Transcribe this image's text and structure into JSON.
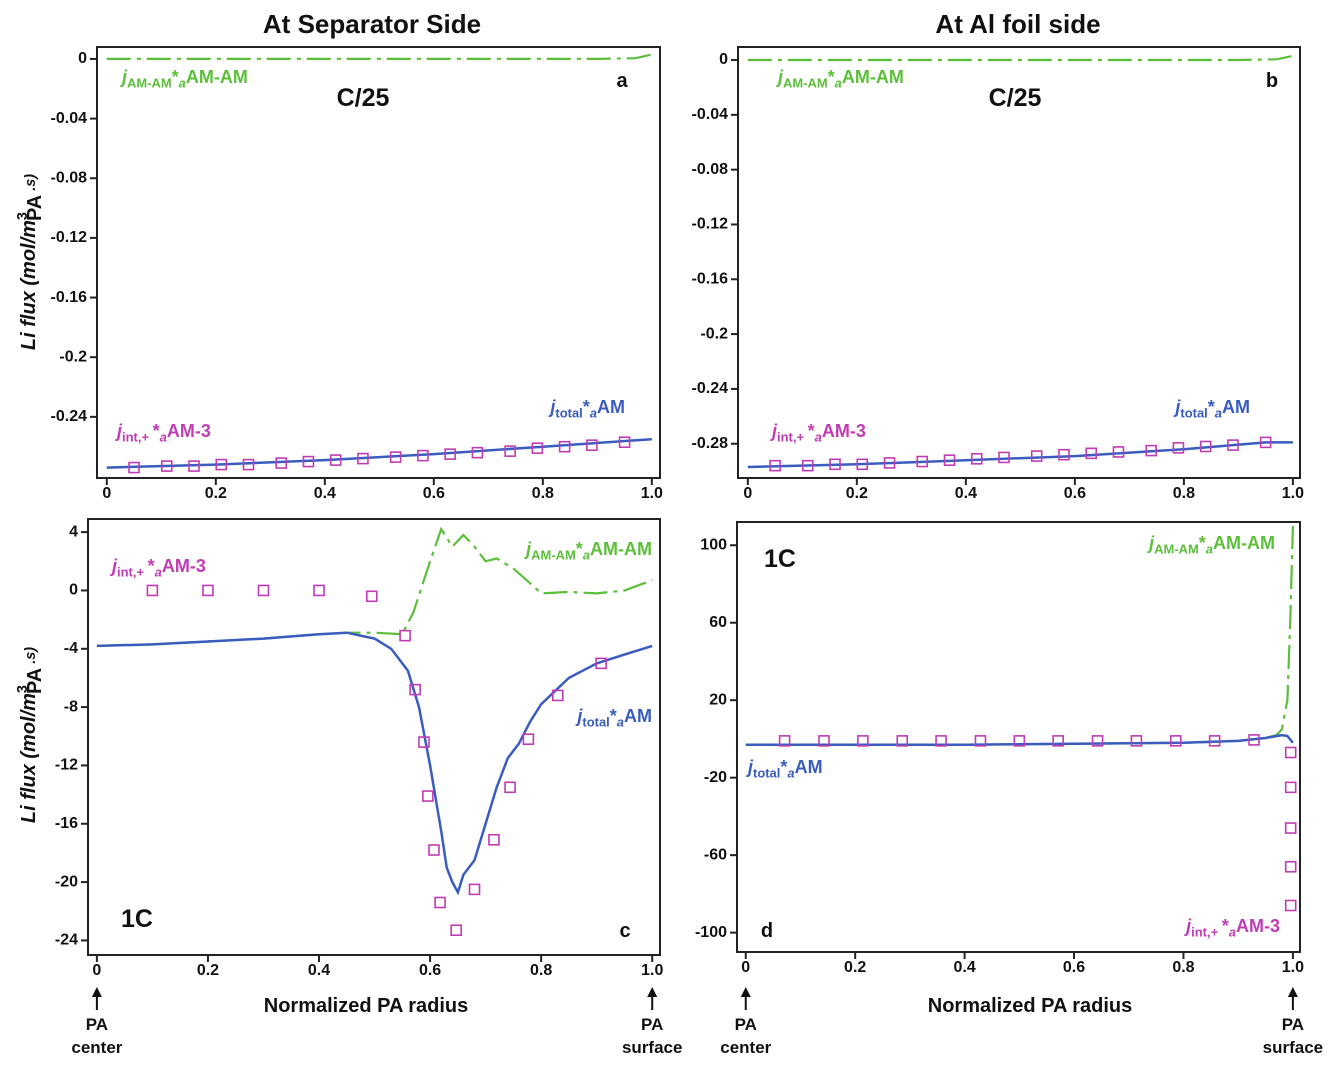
{
  "chart_data": [
    {
      "type": "line",
      "title": "At Separator Side",
      "panel": "a",
      "rate": "C/25",
      "ylabel": [
        "Li flux (mol/m",
        "3",
        "PA",
        " .s)"
      ],
      "xlim": [
        -0.018,
        1.015
      ],
      "ylim": [
        -0.281,
        0.008
      ],
      "xticks": [
        0,
        0.2,
        0.4,
        0.6,
        0.8,
        {
          "value": 1,
          "label": "1.0"
        }
      ],
      "yticks": [
        0,
        -0.04,
        -0.08,
        -0.12,
        -0.16,
        -0.2,
        -0.24
      ],
      "series": [
        {
          "name": [
            "j",
            "AM-AM",
            "*",
            "a",
            "AM-AM"
          ],
          "color": "#5cbf3a",
          "style": "dashdot",
          "x": [
            0,
            0.5,
            0.9,
            0.97,
            1
          ],
          "values": [
            0,
            0,
            0,
            0.0005,
            0.003
          ]
        },
        {
          "name": [
            "j",
            "total",
            "*",
            "a",
            "AM"
          ],
          "color": "#3a5cbf",
          "style": "solid",
          "x": [
            0,
            0.2,
            0.4,
            0.6,
            0.8,
            1
          ],
          "values": [
            -0.274,
            -0.272,
            -0.269,
            -0.265,
            -0.26,
            -0.255
          ]
        },
        {
          "name": [
            "j",
            "int,+ ",
            "*",
            "a",
            "AM-3"
          ],
          "color": "#c03cb4",
          "style": "markers",
          "x": [
            0.05,
            0.11,
            0.16,
            0.21,
            0.26,
            0.32,
            0.37,
            0.42,
            0.47,
            0.53,
            0.58,
            0.63,
            0.68,
            0.74,
            0.79,
            0.84,
            0.89,
            0.95
          ],
          "values": [
            -0.274,
            -0.273,
            -0.273,
            -0.272,
            -0.272,
            -0.271,
            -0.27,
            -0.269,
            -0.268,
            -0.267,
            -0.266,
            -0.265,
            -0.264,
            -0.263,
            -0.261,
            -0.26,
            -0.259,
            -0.257
          ]
        }
      ]
    },
    {
      "type": "line",
      "title": "At Al foil side",
      "panel": "b",
      "rate": "C/25",
      "xlim": [
        -0.018,
        1.013
      ],
      "ylim": [
        -0.305,
        0.0095
      ],
      "xticks": [
        0,
        0.2,
        0.4,
        0.6,
        0.8,
        {
          "value": 1,
          "label": "1.0"
        }
      ],
      "yticks": [
        0,
        -0.04,
        -0.08,
        -0.12,
        -0.16,
        -0.2,
        -0.24,
        -0.28
      ],
      "series": [
        {
          "name": [
            "j",
            "AM-AM",
            "*",
            "a",
            "AM-AM"
          ],
          "color": "#5cbf3a",
          "style": "dashdot",
          "x": [
            0,
            0.5,
            0.9,
            0.97,
            1
          ],
          "values": [
            0,
            0,
            0,
            0.0005,
            0.003
          ]
        },
        {
          "name": [
            "j",
            "total",
            "*",
            "a",
            "AM"
          ],
          "color": "#3a5cbf",
          "style": "solid",
          "x": [
            0,
            0.2,
            0.4,
            0.6,
            0.8,
            0.95,
            1
          ],
          "values": [
            -0.297,
            -0.295,
            -0.292,
            -0.289,
            -0.284,
            -0.279,
            -0.279
          ]
        },
        {
          "name": [
            "j",
            "int,+ ",
            "*",
            "a",
            "AM-3"
          ],
          "color": "#c03cb4",
          "style": "markers",
          "x": [
            0.05,
            0.11,
            0.16,
            0.21,
            0.26,
            0.32,
            0.37,
            0.42,
            0.47,
            0.53,
            0.58,
            0.63,
            0.68,
            0.74,
            0.79,
            0.84,
            0.89,
            0.95
          ],
          "values": [
            -0.296,
            -0.296,
            -0.295,
            -0.295,
            -0.294,
            -0.293,
            -0.292,
            -0.291,
            -0.29,
            -0.289,
            -0.288,
            -0.287,
            -0.286,
            -0.285,
            -0.283,
            -0.282,
            -0.281,
            -0.279
          ]
        }
      ]
    },
    {
      "type": "line",
      "panel": "c",
      "rate": "1C",
      "ylabel": [
        "Li flux (mol/m",
        "3",
        "PA",
        " .s)"
      ],
      "xlabel": "Normalized PA radius",
      "x_annotations": [
        [
          "PA",
          "center"
        ],
        [
          "PA",
          "surface"
        ]
      ],
      "xlim": [
        -0.016,
        1.014
      ],
      "ylim": [
        -25,
        4.9
      ],
      "xticks": [
        0,
        0.2,
        0.4,
        0.6,
        0.8,
        {
          "value": 1,
          "label": "1.0"
        }
      ],
      "yticks": [
        4,
        0,
        -4,
        -8,
        -12,
        -16,
        -20,
        -24
      ],
      "series": [
        {
          "name": [
            "j",
            "AM-AM",
            "*",
            "a",
            "AM-AM"
          ],
          "color": "#5cbf3a",
          "style": "dashdot",
          "x": [
            0,
            0.1,
            0.2,
            0.3,
            0.4,
            0.45,
            0.5,
            0.55,
            0.57,
            0.6,
            0.62,
            0.64,
            0.66,
            0.68,
            0.7,
            0.72,
            0.75,
            0.78,
            0.8,
            0.85,
            0.9,
            0.95,
            1
          ],
          "values": [
            -3.8,
            -3.7,
            -3.5,
            -3.3,
            -3,
            -2.9,
            -2.9,
            -3,
            -1.5,
            2,
            4.2,
            3,
            3.8,
            3,
            2,
            2.2,
            1.5,
            0.5,
            -0.2,
            -0.1,
            -0.2,
            0,
            0.7
          ]
        },
        {
          "name": [
            "j",
            "total",
            "*",
            "a",
            "AM"
          ],
          "color": "#3a5cbf",
          "style": "solid",
          "x": [
            0,
            0.1,
            0.2,
            0.3,
            0.4,
            0.45,
            0.5,
            0.53,
            0.56,
            0.58,
            0.6,
            0.62,
            0.63,
            0.64,
            0.65,
            0.66,
            0.68,
            0.7,
            0.72,
            0.74,
            0.76,
            0.78,
            0.8,
            0.85,
            0.9,
            0.95,
            1
          ],
          "values": [
            -3.8,
            -3.7,
            -3.5,
            -3.3,
            -3,
            -2.9,
            -3.3,
            -4,
            -5.5,
            -8,
            -12,
            -16.5,
            -19,
            -20,
            -20.7,
            -19.5,
            -18.5,
            -16,
            -13.5,
            -11.5,
            -10.5,
            -9,
            -7.8,
            -6,
            -5,
            -4.4,
            -3.8
          ]
        },
        {
          "name": [
            "j",
            "int,+ ",
            "*",
            "a",
            "AM-3"
          ],
          "color": "#c03cb4",
          "style": "markers",
          "x": [
            0.1,
            0.2,
            0.3,
            0.4,
            0.495,
            0.555,
            0.573,
            0.589,
            0.596,
            0.607,
            0.618,
            0.647,
            0.68,
            0.715,
            0.744,
            0.777,
            0.83,
            0.908
          ],
          "values": [
            0,
            0,
            0,
            0,
            -0.4,
            -3.1,
            -6.8,
            -10.4,
            -14.1,
            -17.8,
            -21.4,
            -23.3,
            -20.5,
            -17.1,
            -13.5,
            -10.2,
            -7.2,
            -5
          ]
        }
      ]
    },
    {
      "type": "line",
      "panel": "d",
      "rate": "1C",
      "xlabel": "Normalized PA radius",
      "x_annotations": [
        [
          "PA",
          "center"
        ],
        [
          "PA",
          "surface"
        ]
      ],
      "xlim": [
        -0.016,
        1.013
      ],
      "ylim": [
        -110,
        112
      ],
      "xticks": [
        0,
        0.2,
        0.4,
        0.6,
        0.8,
        {
          "value": 1,
          "label": "1.0"
        }
      ],
      "yticks": [
        100,
        60,
        20,
        -20,
        -60,
        -100
      ],
      "series": [
        {
          "name": [
            "j",
            "AM-AM",
            "*",
            "a",
            "AM-AM"
          ],
          "color": "#5cbf3a",
          "style": "dashdot",
          "x": [
            0,
            0.2,
            0.4,
            0.6,
            0.8,
            0.9,
            0.95,
            0.97,
            0.98,
            0.99,
            0.995,
            1
          ],
          "values": [
            -3,
            -3,
            -3,
            -2.5,
            -2,
            -1,
            0.5,
            2,
            5,
            20,
            60,
            110
          ]
        },
        {
          "name": [
            "j",
            "total",
            "*",
            "a",
            "AM"
          ],
          "color": "#3a5cbf",
          "style": "solid",
          "x": [
            0,
            0.2,
            0.4,
            0.6,
            0.8,
            0.9,
            0.95,
            0.98,
            0.99,
            1
          ],
          "values": [
            -3,
            -3,
            -3,
            -2.5,
            -2,
            -1,
            0.5,
            2,
            1.5,
            -2
          ]
        },
        {
          "name": [
            "j",
            "int,+ ",
            "*",
            "a",
            "AM-3"
          ],
          "color": "#c03cb4",
          "style": "markers",
          "x": [
            0.071,
            0.143,
            0.214,
            0.286,
            0.357,
            0.429,
            0.5,
            0.571,
            0.643,
            0.714,
            0.786,
            0.857,
            0.929,
            0.996,
            0.996,
            0.996,
            0.996,
            0.996
          ],
          "values": [
            -1,
            -1,
            -1,
            -1,
            -1,
            -1,
            -1,
            -1,
            -1,
            -1,
            -1,
            -1,
            -0.5,
            -7,
            -25,
            -46,
            -66,
            -86
          ]
        }
      ]
    }
  ]
}
